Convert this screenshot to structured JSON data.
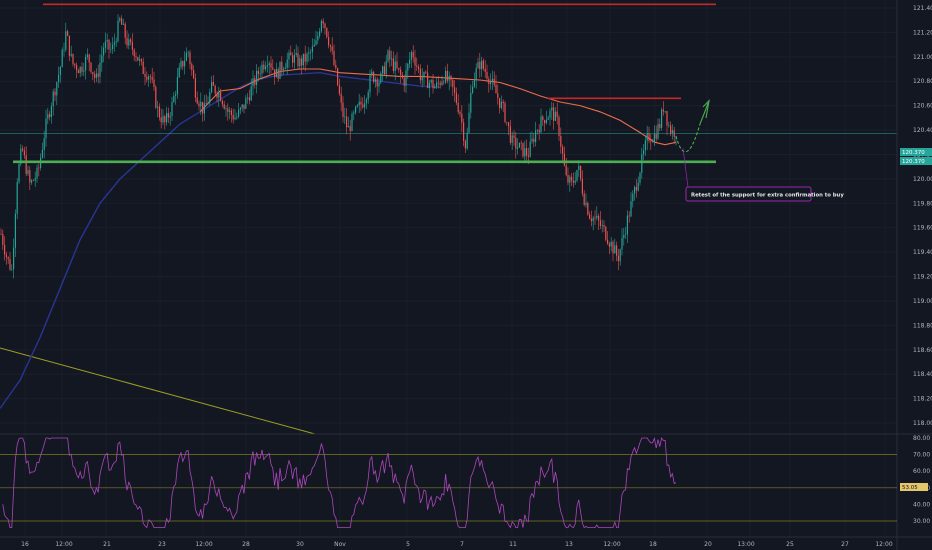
{
  "chart_data": [
    {
      "type": "candlestick",
      "title": "",
      "ylim": [
        117.9,
        121.55
      ],
      "price_ticks": [
        "121.400",
        "121.200",
        "121.000",
        "120.800",
        "120.600",
        "120.400",
        "120.200",
        "120.000",
        "119.800",
        "119.600",
        "119.400",
        "119.200",
        "119.000",
        "118.800",
        "118.600",
        "118.400",
        "118.200",
        "118.000"
      ],
      "current_price": "120.370",
      "current_tag_secondary": "120.370",
      "resistance_level": 121.43,
      "support_level": 120.14,
      "local_resistance_level": 120.66,
      "callout": "Retest of the support for extra confirmation to buy",
      "colors": {
        "up": "#26a69a",
        "down": "#ef5350",
        "resistance": "#c62828",
        "support": "#4caf50",
        "ma_slow": "#1a237e",
        "ma_fast": "#ef6c4a",
        "trendline": "#9e9d24",
        "arrow": "#4caf50",
        "callout_border": "#9c27b0",
        "current_line": "#26a69a"
      }
    },
    {
      "type": "line",
      "title": "",
      "ylim": [
        23,
        82
      ],
      "rsi_ticks": [
        "80.00",
        "70.00",
        "60.00",
        "50.00",
        "40.00",
        "30.00"
      ],
      "band_upper": 70,
      "band_mid": 50,
      "band_lower": 30,
      "current_value": "53.05",
      "colors": {
        "rsi": "#ab47bc",
        "band": "#9e9d24"
      }
    }
  ],
  "x_axis": {
    "labels": [
      "16",
      "12:00",
      "21",
      "23",
      "12:00",
      "28",
      "30",
      "Nov",
      "5",
      "7",
      "11",
      "13",
      "12:00",
      "18",
      "20",
      "13:00",
      "25",
      "27",
      "12:00"
    ]
  }
}
